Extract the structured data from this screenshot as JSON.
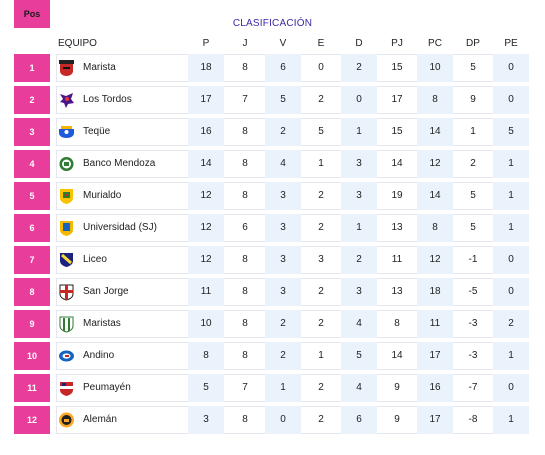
{
  "title": "CLASIFICACIÓN",
  "headers": [
    "Pos",
    "EQUIPO",
    "P",
    "J",
    "V",
    "E",
    "D",
    "PJ",
    "PC",
    "DP",
    "PE"
  ],
  "colors": {
    "accent": "#e83d9b",
    "title": "#3b2aa3",
    "shade": "#eaf3fb"
  },
  "rows": [
    {
      "pos": "1",
      "team": "Marista",
      "logo": "marista-crest-icon",
      "vals": [
        "18",
        "8",
        "6",
        "0",
        "2",
        "15",
        "10",
        "5",
        "0"
      ]
    },
    {
      "pos": "2",
      "team": "Los Tordos",
      "logo": "los-tordos-crest-icon",
      "vals": [
        "17",
        "7",
        "5",
        "2",
        "0",
        "17",
        "8",
        "9",
        "0"
      ]
    },
    {
      "pos": "3",
      "team": "Teqüe",
      "logo": "teque-crest-icon",
      "vals": [
        "16",
        "8",
        "2",
        "5",
        "1",
        "15",
        "14",
        "1",
        "5"
      ]
    },
    {
      "pos": "4",
      "team": "Banco Mendoza",
      "logo": "banco-mendoza-crest-icon",
      "vals": [
        "14",
        "8",
        "4",
        "1",
        "3",
        "14",
        "12",
        "2",
        "1"
      ]
    },
    {
      "pos": "5",
      "team": "Murialdo",
      "logo": "murialdo-crest-icon",
      "vals": [
        "12",
        "8",
        "3",
        "2",
        "3",
        "19",
        "14",
        "5",
        "1"
      ]
    },
    {
      "pos": "6",
      "team": "Universidad (SJ)",
      "logo": "universidad-sj-crest-icon",
      "vals": [
        "12",
        "6",
        "3",
        "2",
        "1",
        "13",
        "8",
        "5",
        "1"
      ]
    },
    {
      "pos": "7",
      "team": "Liceo",
      "logo": "liceo-crest-icon",
      "vals": [
        "12",
        "8",
        "3",
        "3",
        "2",
        "11",
        "12",
        "-1",
        "0"
      ]
    },
    {
      "pos": "8",
      "team": "San Jorge",
      "logo": "san-jorge-crest-icon",
      "vals": [
        "11",
        "8",
        "3",
        "2",
        "3",
        "13",
        "18",
        "-5",
        "0"
      ]
    },
    {
      "pos": "9",
      "team": "Maristas",
      "logo": "maristas-crest-icon",
      "vals": [
        "10",
        "8",
        "2",
        "2",
        "4",
        "8",
        "11",
        "-3",
        "2"
      ]
    },
    {
      "pos": "10",
      "team": "Andino",
      "logo": "andino-crest-icon",
      "vals": [
        "8",
        "8",
        "2",
        "1",
        "5",
        "14",
        "17",
        "-3",
        "1"
      ]
    },
    {
      "pos": "11",
      "team": "Peumayén",
      "logo": "peumayen-crest-icon",
      "vals": [
        "5",
        "7",
        "1",
        "2",
        "4",
        "9",
        "16",
        "-7",
        "0"
      ]
    },
    {
      "pos": "12",
      "team": "Alemán",
      "logo": "aleman-crest-icon",
      "vals": [
        "3",
        "8",
        "0",
        "2",
        "6",
        "9",
        "17",
        "-8",
        "1"
      ]
    }
  ]
}
